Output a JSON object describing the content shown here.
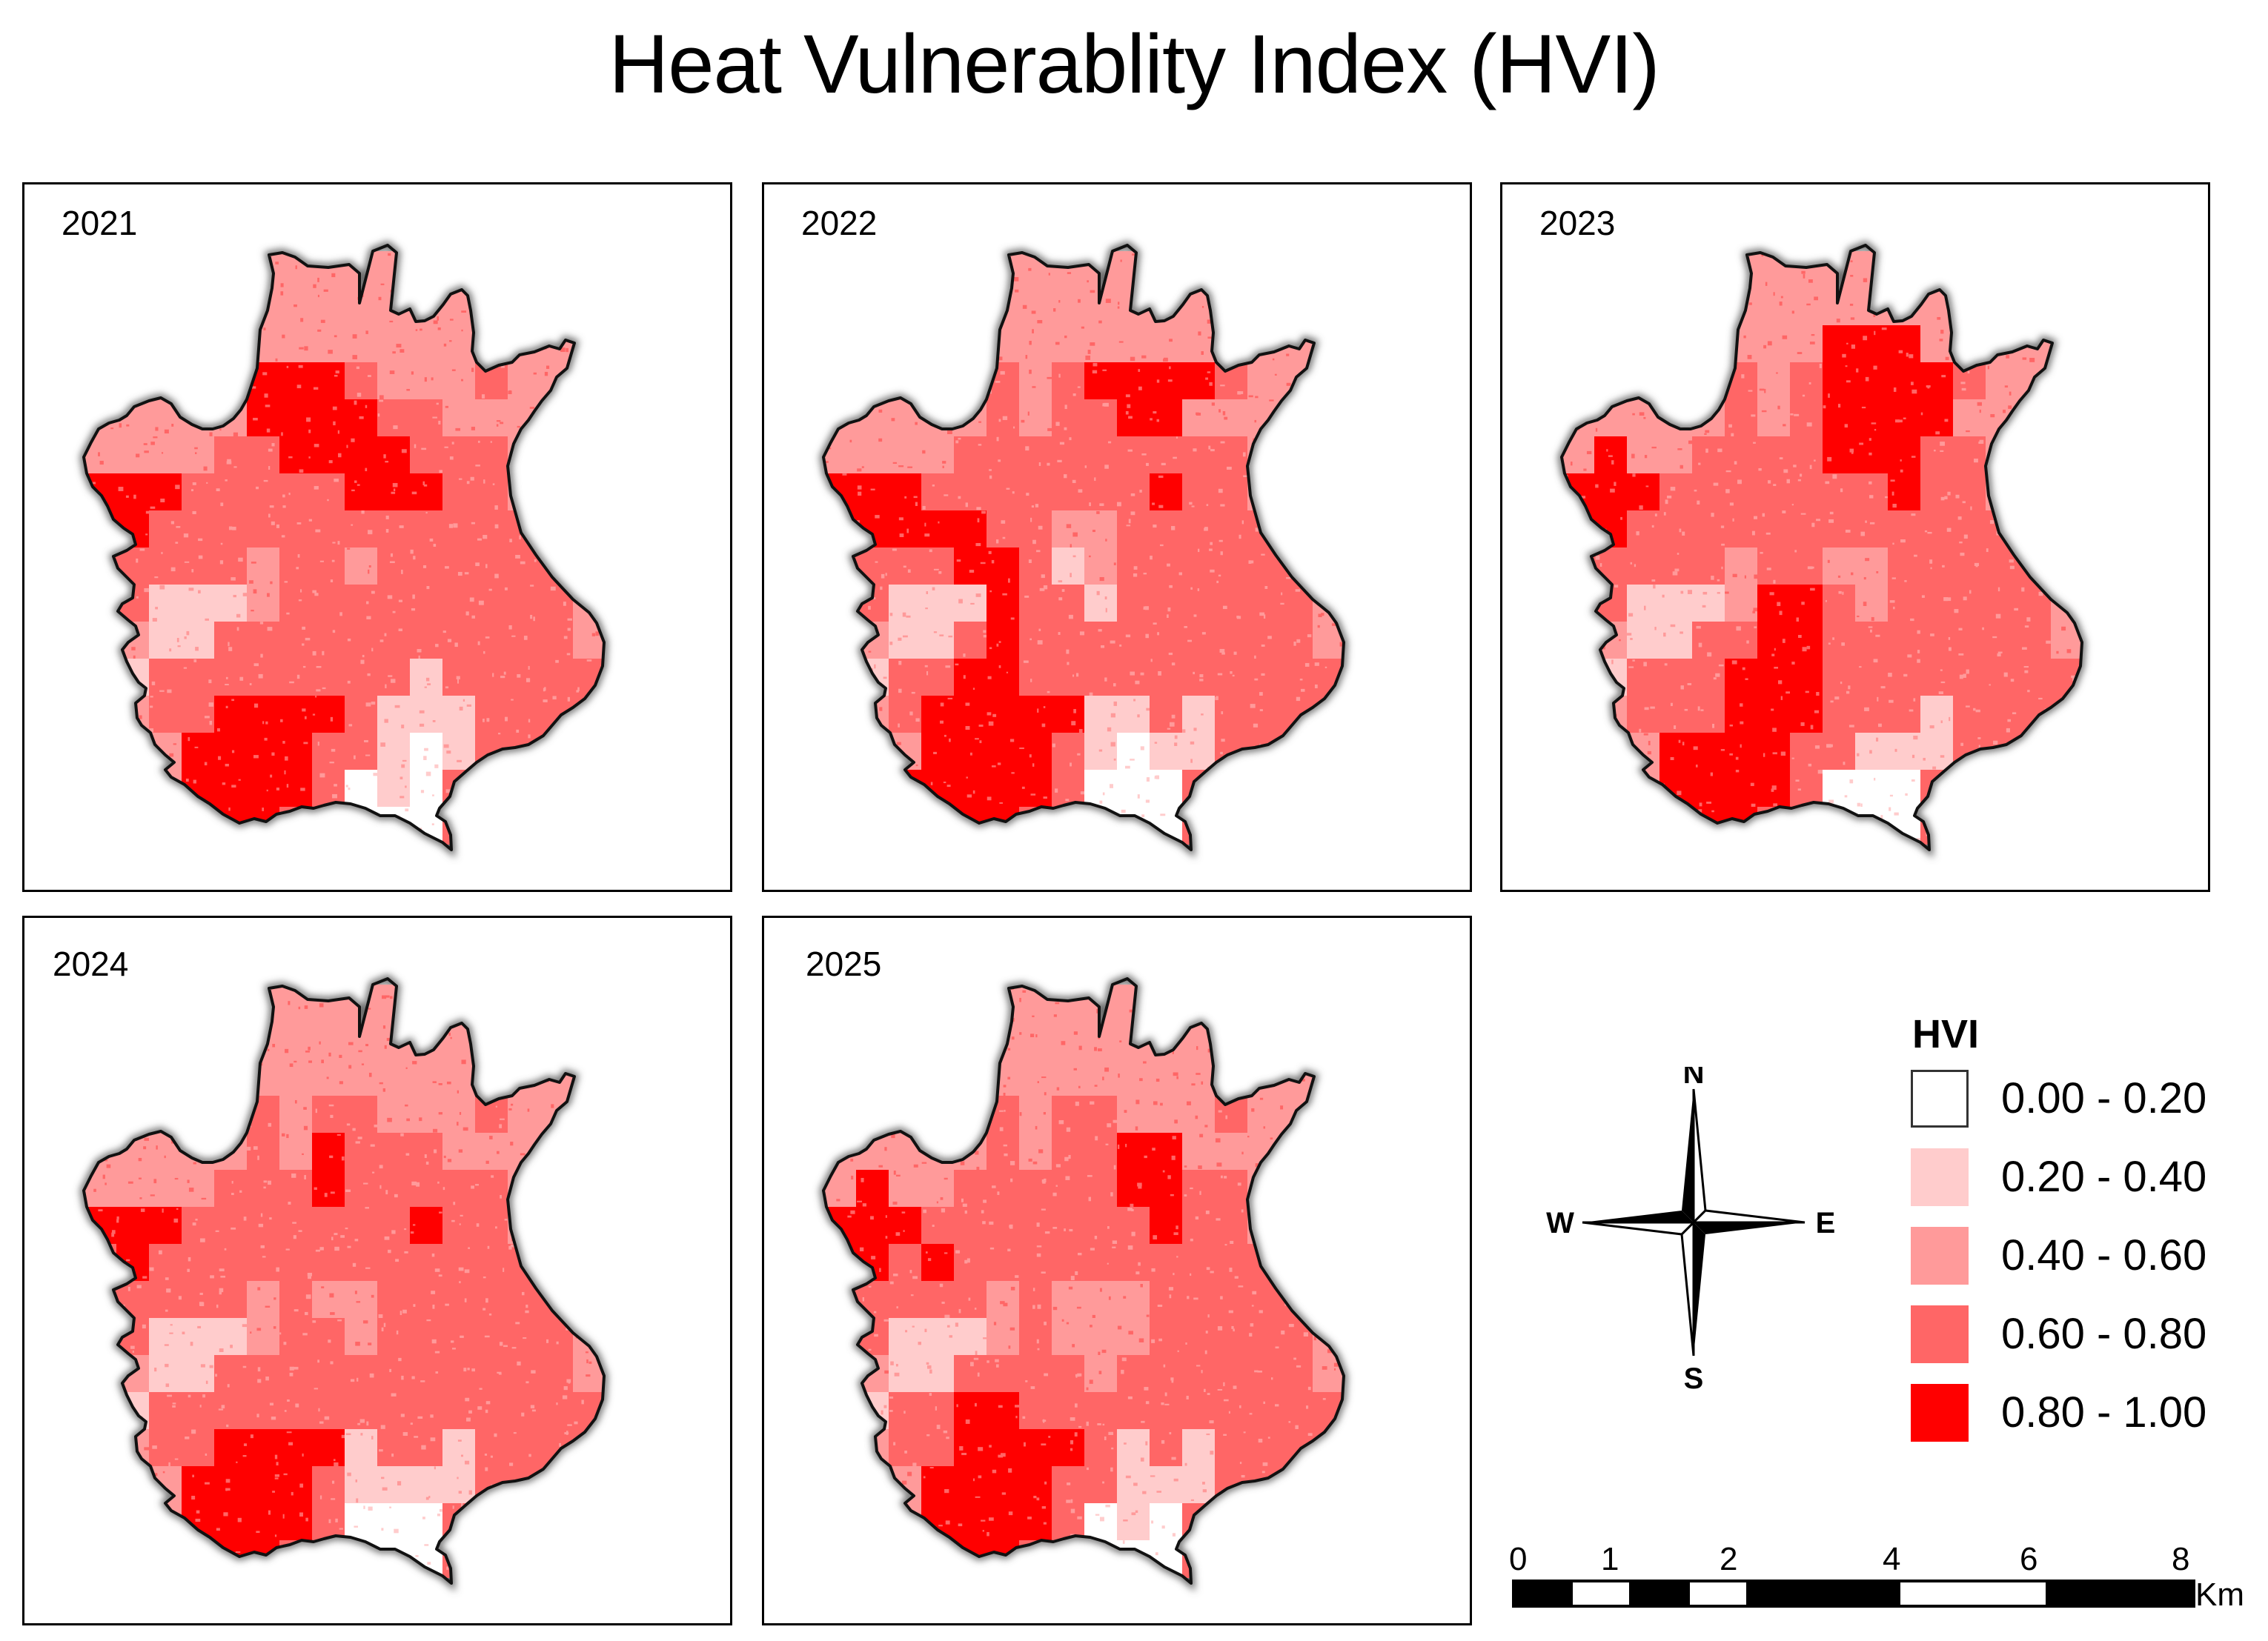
{
  "title": "Heat Vulnerablity Index (HVI)",
  "panels": [
    {
      "year": "2021"
    },
    {
      "year": "2022"
    },
    {
      "year": "2023"
    },
    {
      "year": "2024"
    },
    {
      "year": "2025"
    }
  ],
  "legend": {
    "title": "HVI",
    "classes": [
      {
        "label": "0.00 - 0.20",
        "color": "#ffffff"
      },
      {
        "label": "0.20 - 0.40",
        "color": "#ffcccc"
      },
      {
        "label": "0.40 - 0.60",
        "color": "#ff9a9a"
      },
      {
        "label": "0.60 - 0.80",
        "color": "#ff6666"
      },
      {
        "label": "0.80 - 1.00",
        "color": "#ff0000"
      }
    ]
  },
  "compass": {
    "north": "N",
    "south": "S",
    "east": "E",
    "west": "W"
  },
  "scale": {
    "ticks": [
      "0",
      "1",
      "2",
      "4",
      "6",
      "8"
    ],
    "unit": "Km"
  }
}
